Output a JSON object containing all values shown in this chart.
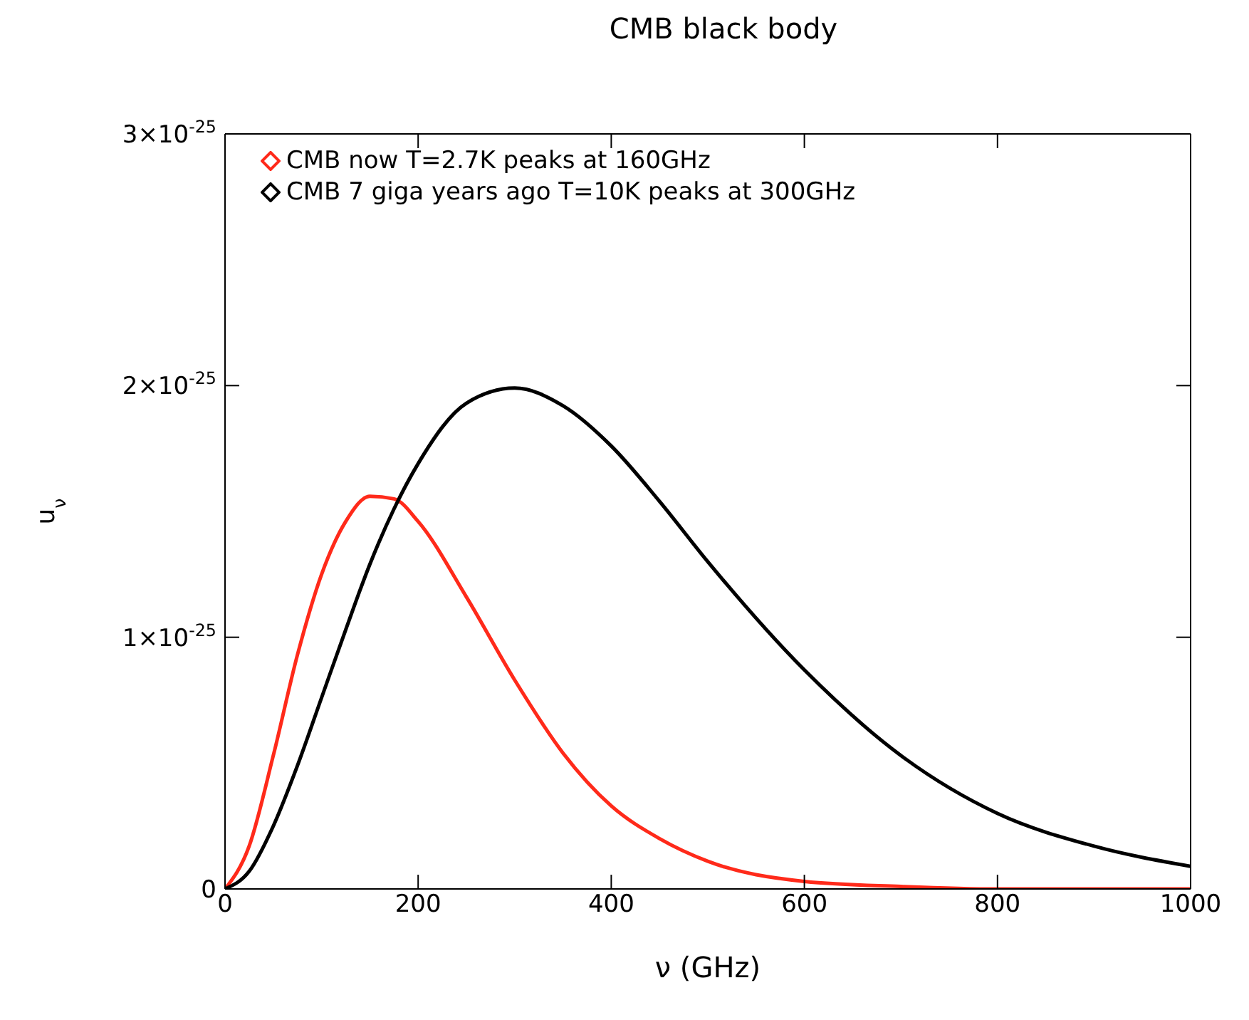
{
  "chart_data": {
    "type": "line",
    "title": "CMB black body",
    "xlabel": "ν (GHz)",
    "ylabel": "u$_{ν}$",
    "x": [
      0,
      25,
      50,
      75,
      100,
      125,
      150,
      175,
      200,
      250,
      300,
      350,
      400,
      450,
      500,
      600,
      700,
      800,
      900,
      1000
    ],
    "series": [
      {
        "name": "CMB now T=2.7K peaks at 160GHz",
        "color": "#ff2a1a",
        "values": [
          0,
          1.7e-26,
          5.3e-26,
          9.3e-26,
          1.25e-25,
          1.46e-25,
          1.56e-25,
          1.55e-25,
          1.46e-25,
          1.16e-25,
          8.3e-26,
          5.4e-26,
          3.3e-26,
          2e-26,
          1.1e-26,
          3e-27,
          1e-27,
          0,
          0,
          0
        ]
      },
      {
        "name": "CMB 7 giga years ago T=10K peaks at 300GHz",
        "color": "#000000",
        "values": [
          0,
          7e-27,
          2.5e-26,
          4.9e-26,
          7.6e-26,
          1.03e-25,
          1.29e-25,
          1.51e-25,
          1.69e-25,
          1.93e-25,
          1.99e-25,
          1.92e-25,
          1.76e-25,
          1.54e-25,
          1.3e-25,
          8.7e-26,
          5.3e-26,
          3e-26,
          1.7e-26,
          9e-27
        ]
      }
    ],
    "xlim": [
      0,
      1000
    ],
    "xticks": [
      0,
      200,
      400,
      600,
      800,
      1000
    ],
    "ylim": [
      0,
      3e-25
    ],
    "yticks": [
      {
        "value": 0,
        "label": "0"
      },
      {
        "value": 1e-25,
        "label": "1×10$^{-25}$"
      },
      {
        "value": 2e-25,
        "label": "2×10$^{-25}$"
      },
      {
        "value": 3e-25,
        "label": "3×10$^{-25}$"
      }
    ],
    "legend": "top left",
    "marker": "none",
    "line_style": "solid"
  }
}
